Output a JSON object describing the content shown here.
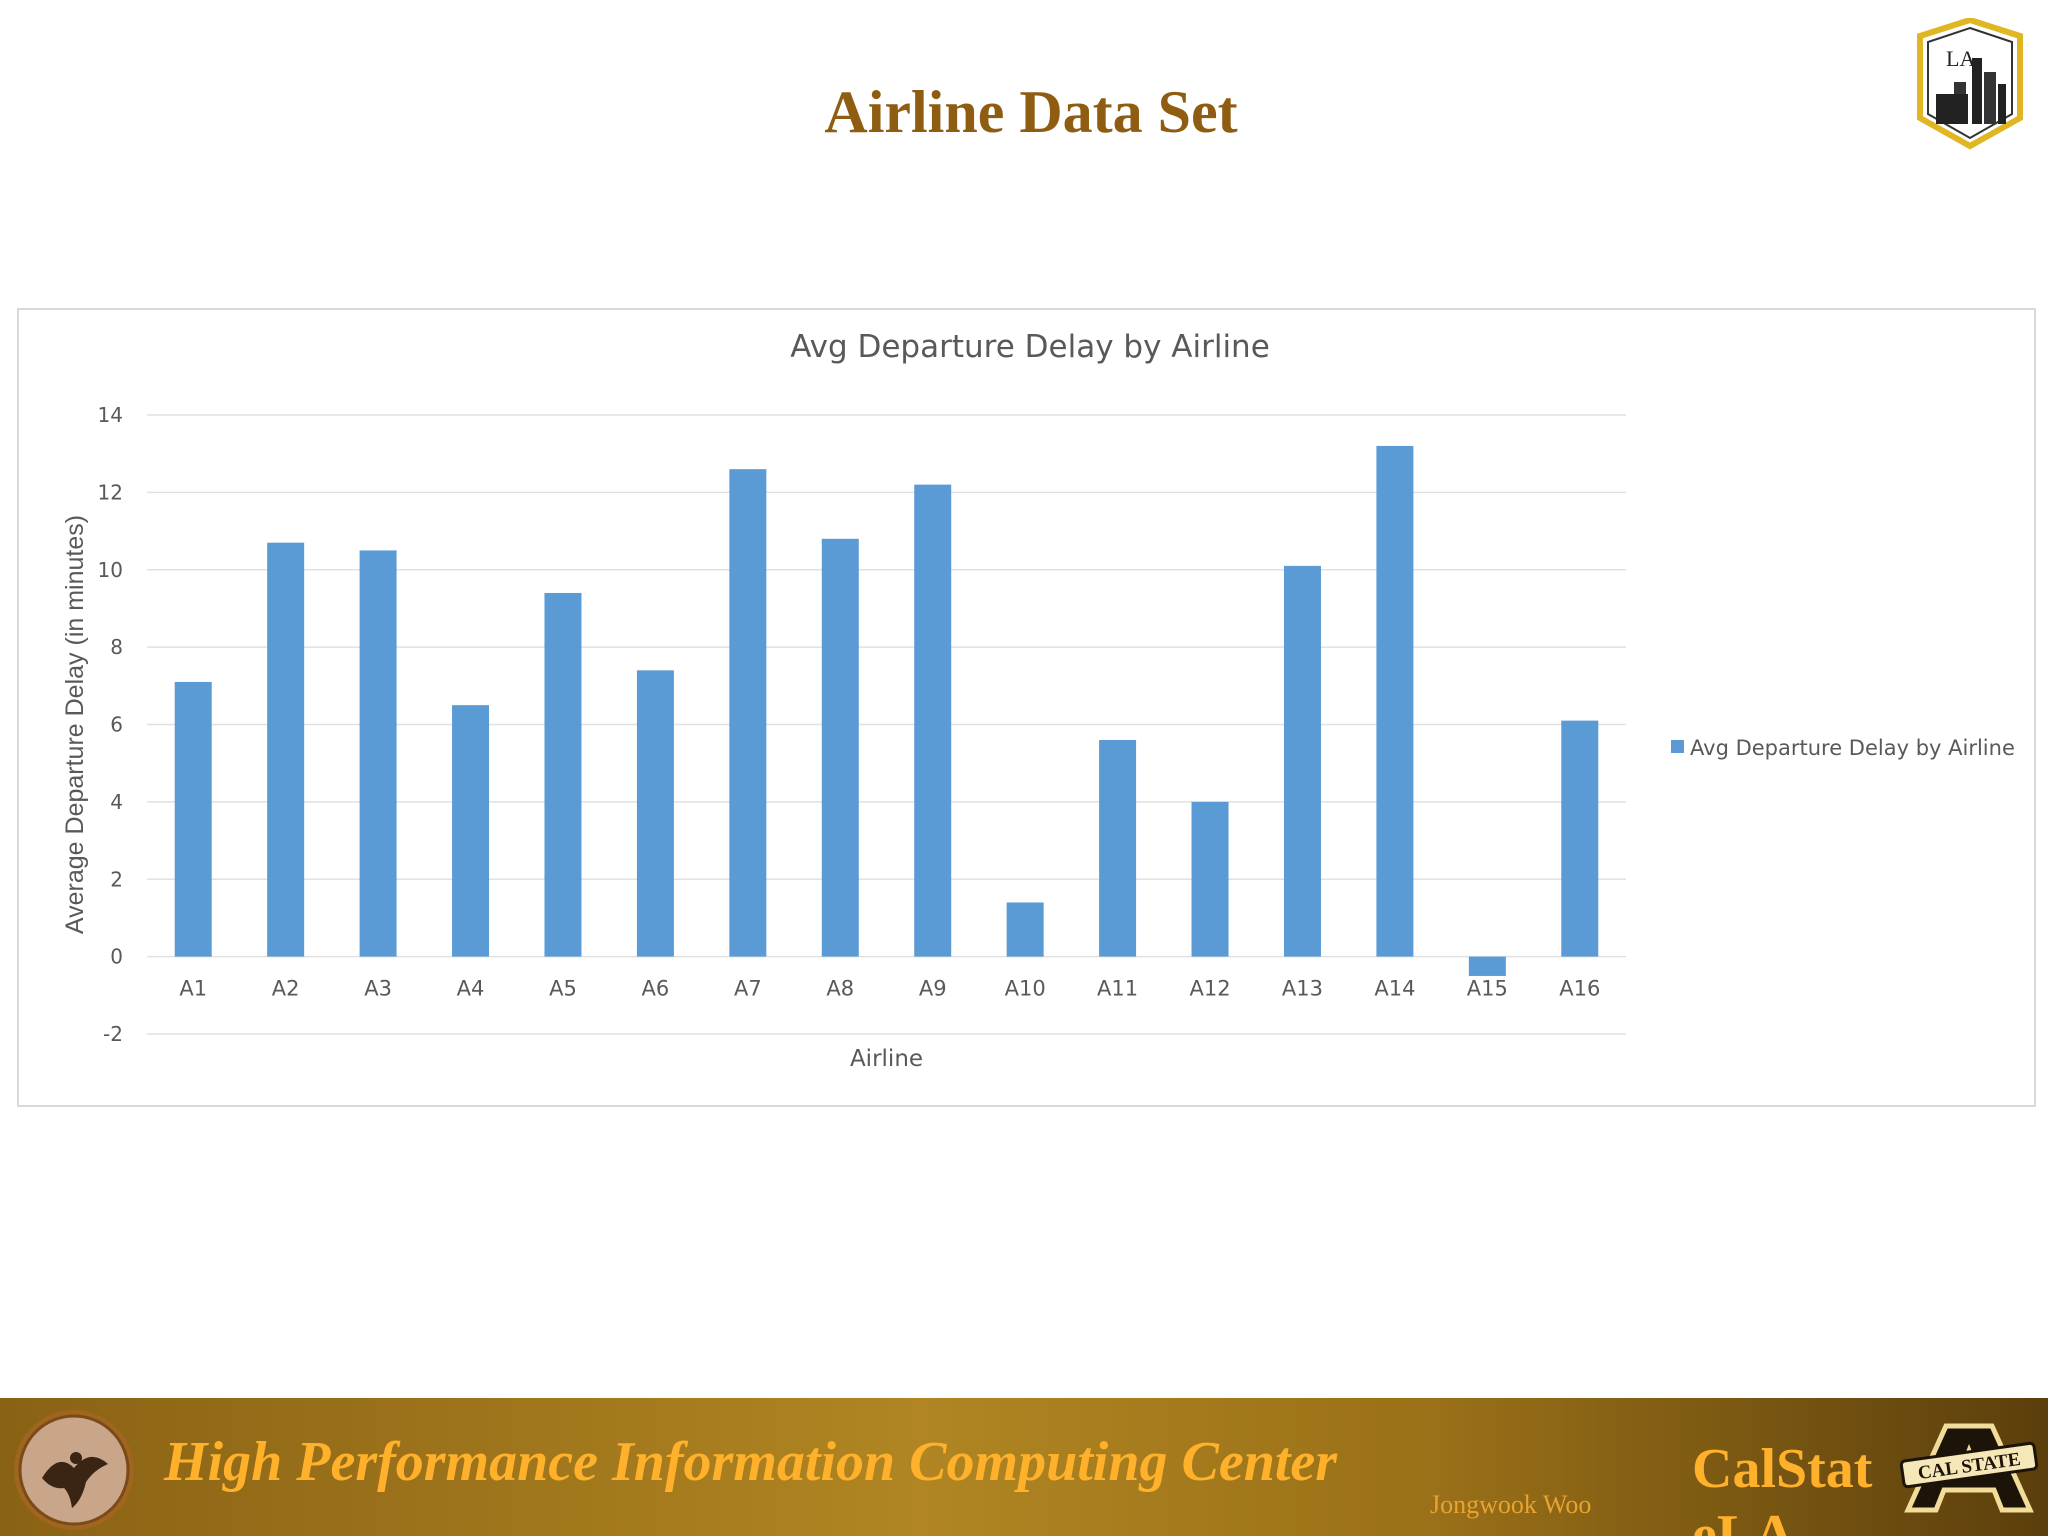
{
  "slide": {
    "title": "Airline Data Set"
  },
  "footer": {
    "center_name": "High Performance Information Computing Center",
    "author": "Jongwook Woo",
    "university": "CalStateLA"
  },
  "logos": {
    "top_logo_text": "LA",
    "footer_logo_text": "CAL STATE"
  },
  "colors": {
    "title": "#8f5d12",
    "bar": "#5b9bd5",
    "footer_text": "#ffb12b"
  },
  "chart_data": {
    "type": "bar",
    "title": "Avg Departure Delay by Airline",
    "xlabel": "Airline",
    "ylabel": "Average Departure Delay (in minutes)",
    "ylim": [
      -2,
      14
    ],
    "yticks": [
      -2,
      0,
      2,
      4,
      6,
      8,
      10,
      12,
      14
    ],
    "grid": true,
    "legend_position": "right",
    "categories": [
      "A1",
      "A2",
      "A3",
      "A4",
      "A5",
      "A6",
      "A7",
      "A8",
      "A9",
      "A10",
      "A11",
      "A12",
      "A13",
      "A14",
      "A15",
      "A16"
    ],
    "series": [
      {
        "name": "Avg Departure Delay by Airline",
        "values": [
          7.1,
          10.7,
          10.5,
          6.5,
          9.4,
          7.4,
          12.6,
          10.8,
          12.2,
          1.4,
          5.6,
          4.0,
          10.1,
          13.2,
          -0.5,
          6.1
        ]
      }
    ]
  }
}
